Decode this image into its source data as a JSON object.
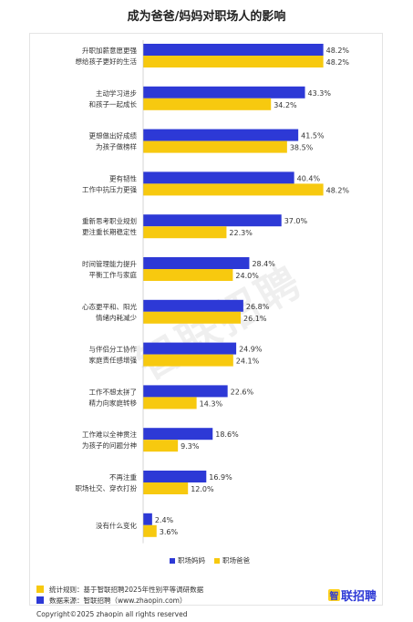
{
  "page_title": "成为爸爸/妈妈对职场人的影响",
  "colors": {
    "mom": "#2d39d6",
    "dad": "#f7c90f"
  },
  "chart_data": {
    "type": "bar",
    "orientation": "horizontal",
    "title": "成为爸爸/妈妈对职场人的影响",
    "categories": [
      [
        "升职加薪意愿更强",
        "想给孩子更好的生活"
      ],
      [
        "主动学习进步",
        "和孩子一起成长"
      ],
      [
        "更想做出好成绩",
        "为孩子做榜样"
      ],
      [
        "更有韧性",
        "工作中抗压力更强"
      ],
      [
        "重新思考职业规划",
        "更注重长期稳定性"
      ],
      [
        "时间管理能力提升",
        "平衡工作与家庭"
      ],
      [
        "心态更平和、阳光",
        "情绪内耗减少"
      ],
      [
        "与伴侣分工协作",
        "家庭责任感增强"
      ],
      [
        "工作不想太拼了",
        "精力向家庭转移"
      ],
      [
        "工作难以全神贯注",
        "为孩子的问题分神"
      ],
      [
        "不再注重",
        "职场社交、穿衣打扮"
      ],
      [
        "没有什么变化"
      ]
    ],
    "series": [
      {
        "name": "职场妈妈",
        "values": [
          48.2,
          43.3,
          41.5,
          40.4,
          37.0,
          28.4,
          26.8,
          24.9,
          22.6,
          18.6,
          16.9,
          2.4
        ]
      },
      {
        "name": "职场爸爸",
        "values": [
          48.2,
          34.2,
          38.5,
          48.2,
          22.3,
          24.0,
          26.1,
          24.1,
          14.3,
          9.3,
          12.0,
          3.6
        ]
      }
    ],
    "value_labels": {
      "mom": [
        "48.2%",
        "43.3%",
        "41.5%",
        "40.4%",
        "37.0%",
        "28.4%",
        "26.8%",
        "24.9%",
        "22.6%",
        "18.6%",
        "16.9%",
        "2.4%"
      ],
      "dad": [
        "48.2%",
        "34.2%",
        "38.5%",
        "48.2%",
        "22.3%",
        "24.0%",
        "26.1%",
        "24.1%",
        "14.3%",
        "9.3%",
        "12.0%",
        "3.6%"
      ]
    },
    "xlim": [
      0,
      50
    ],
    "grid": false,
    "legend_position": "bottom-right"
  },
  "watermark": "智联招聘",
  "legend": {
    "mom": "职场妈妈",
    "dad": "职场爸爸"
  },
  "footer": {
    "stat_rule": "统计规则：基于智联招聘2025年性别平等调研数据",
    "source": "数据来源：智联招聘（www.zhaopin.com）",
    "copyright": "Copyright©2025 zhaopin all rights reserved",
    "brand_mark": "智",
    "brand_text": "联招聘"
  }
}
